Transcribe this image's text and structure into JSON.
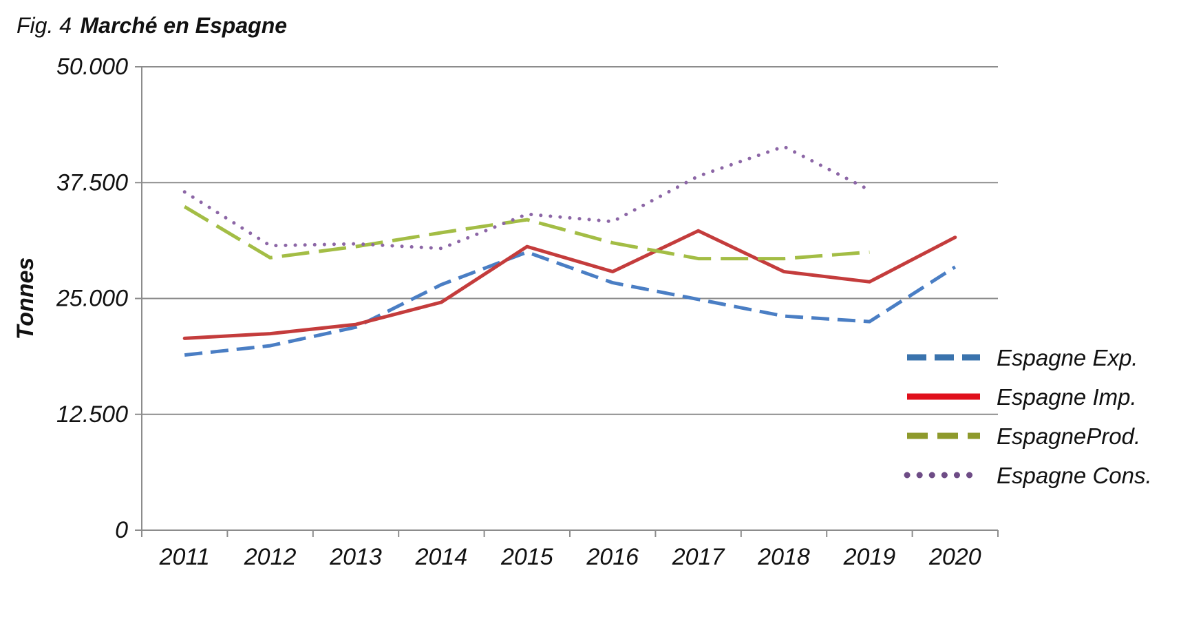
{
  "figure": {
    "prefix": "Fig. 4",
    "title": "Marché en Espagne"
  },
  "chart_data": {
    "type": "line",
    "title": "Marché en Espagne",
    "xlabel": "",
    "ylabel": "Tonnes",
    "ylim": [
      0,
      50000
    ],
    "yticks": [
      0,
      12500,
      25000,
      37500,
      50000
    ],
    "ytick_labels": [
      "0",
      "12.500",
      "25.000",
      "37.500",
      "50.000"
    ],
    "categories": [
      "2011",
      "2012",
      "2013",
      "2014",
      "2015",
      "2016",
      "2017",
      "2018",
      "2019",
      "2020"
    ],
    "grid": "horizontal",
    "legend_position": "right",
    "series": [
      {
        "name": "Espagne Exp.",
        "color": "#4a7ec4",
        "legend_color": "#3a73ad",
        "style": "dashed",
        "values": [
          18900,
          19900,
          21900,
          26500,
          30000,
          26700,
          24900,
          23100,
          22500,
          28400
        ]
      },
      {
        "name": "Espagne Imp.",
        "color": "#c43c3c",
        "legend_color": "#e0101c",
        "style": "solid",
        "values": [
          20700,
          21200,
          22200,
          24600,
          30600,
          27900,
          32300,
          27900,
          26800,
          31600
        ]
      },
      {
        "name": "EspagneProd.",
        "color": "#a3bd45",
        "legend_color": "#8e9a2c",
        "style": "longdash",
        "values": [
          34900,
          29400,
          30600,
          32100,
          33500,
          31000,
          29300,
          29300,
          30000,
          null
        ]
      },
      {
        "name": "Espagne Cons.",
        "color": "#8c66a6",
        "legend_color": "#6e4c86",
        "style": "dotted",
        "values": [
          36500,
          30700,
          30900,
          30400,
          34100,
          33300,
          38200,
          41400,
          36700,
          null
        ]
      }
    ]
  }
}
